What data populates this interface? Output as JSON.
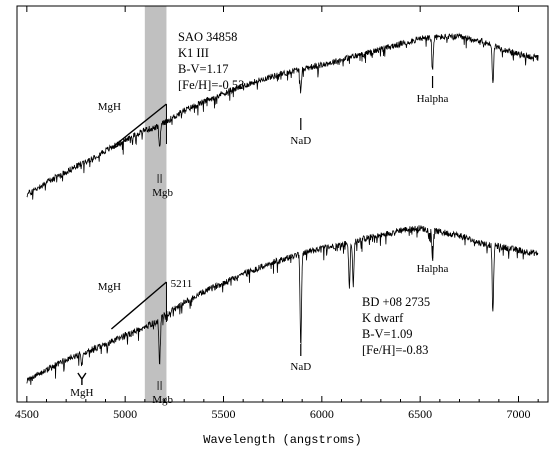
{
  "chart_data": {
    "type": "line",
    "xlabel": "Wavelength (angstroms)",
    "x_ticks": [
      4500,
      5000,
      5500,
      6000,
      6500,
      7000
    ],
    "xlim": [
      4450,
      7150
    ],
    "grid": false,
    "highlight_band": {
      "x_range": [
        5100,
        5210
      ],
      "color": "#c0c0c0"
    },
    "series": [
      {
        "name": "SAO 34858",
        "info_lines": [
          "SAO 34858",
          "K1 III",
          "B-V=1.17",
          "[Fe/H]=-0.53"
        ],
        "x": [
          4500,
          4600,
          4700,
          4800,
          4900,
          5000,
          5100,
          5150,
          5200,
          5300,
          5400,
          5500,
          5600,
          5700,
          5800,
          5900,
          6000,
          6100,
          6200,
          6300,
          6400,
          6500,
          6600,
          6700,
          6800,
          6900,
          7000,
          7100
        ],
        "y": [
          0.06,
          0.13,
          0.19,
          0.25,
          0.31,
          0.37,
          0.43,
          0.44,
          0.47,
          0.54,
          0.59,
          0.64,
          0.68,
          0.72,
          0.75,
          0.78,
          0.8,
          0.83,
          0.86,
          0.89,
          0.92,
          0.95,
          0.96,
          0.96,
          0.94,
          0.9,
          0.86,
          0.84
        ],
        "absorption_lines": [
          {
            "x": 5175,
            "depth": 0.14
          },
          {
            "x": 5893,
            "depth": 0.13
          },
          {
            "x": 6563,
            "depth": 0.19
          },
          {
            "x": 6870,
            "depth": 0.22
          }
        ]
      },
      {
        "name": "BD +08 2735",
        "info_lines": [
          "BD +08 2735",
          "K dwarf",
          "B-V=1.09",
          "[Fe/H]=-0.83"
        ],
        "x": [
          4500,
          4600,
          4700,
          4800,
          4900,
          5000,
          5100,
          5150,
          5200,
          5300,
          5400,
          5500,
          5600,
          5700,
          5800,
          5900,
          6000,
          6100,
          6200,
          6300,
          6400,
          6500,
          6600,
          6700,
          6800,
          6900,
          7000,
          7100
        ],
        "y": [
          0.06,
          0.12,
          0.18,
          0.22,
          0.26,
          0.31,
          0.36,
          0.38,
          0.42,
          0.49,
          0.55,
          0.6,
          0.65,
          0.69,
          0.73,
          0.76,
          0.79,
          0.81,
          0.84,
          0.86,
          0.89,
          0.9,
          0.88,
          0.86,
          0.82,
          0.8,
          0.78,
          0.76
        ],
        "absorption_lines": [
          {
            "x": 4780,
            "depth": 0.07
          },
          {
            "x": 5175,
            "depth": 0.24
          },
          {
            "x": 5893,
            "depth": 0.5
          },
          {
            "x": 6140,
            "depth": 0.25
          },
          {
            "x": 6160,
            "depth": 0.24
          },
          {
            "x": 6563,
            "depth": 0.16
          },
          {
            "x": 6870,
            "depth": 0.38
          }
        ]
      }
    ],
    "annotations": [
      {
        "text": "MgH",
        "series": 0,
        "x": 4980
      },
      {
        "text": "Mgb",
        "series": 0,
        "x": 5175
      },
      {
        "text": "NaD",
        "series": 0,
        "x": 5893
      },
      {
        "text": "Halpha",
        "series": 0,
        "x": 6563
      },
      {
        "text": "MgH",
        "series": 1,
        "x": 4980
      },
      {
        "text": "5211",
        "series": 1,
        "x": 5211
      },
      {
        "text": "MgH",
        "series": 1,
        "x": 4780
      },
      {
        "text": "Mgb",
        "series": 1,
        "x": 5175
      },
      {
        "text": "NaD",
        "series": 1,
        "x": 5893
      },
      {
        "text": "Halpha",
        "series": 1,
        "x": 6563
      }
    ]
  }
}
